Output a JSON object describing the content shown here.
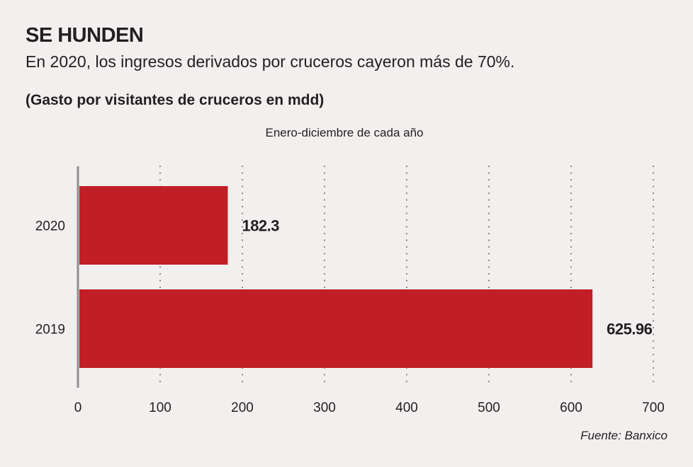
{
  "header": {
    "title": "SE HUNDEN",
    "subtitle": "En 2020, los ingresos derivados por cruceros cayeron más de 70%.",
    "unit_note": "(Gasto por visitantes de cruceros en mdd)"
  },
  "footer": {
    "source": "Fuente: Banxico"
  },
  "colors": {
    "bar": "#c11e26",
    "background": "#f2efef",
    "grid": "#8a8a8a",
    "axis": "#8f8f8f",
    "text": "#231f20"
  },
  "chart_data": {
    "type": "bar",
    "orientation": "horizontal",
    "title": "SE HUNDEN",
    "subtitle": "Enero-diciembre de cada año",
    "xlabel": "",
    "ylabel": "",
    "categories": [
      "2020",
      "2019"
    ],
    "values": [
      182.3,
      625.96
    ],
    "data_labels": [
      "182.3",
      "625.96"
    ],
    "xlim": [
      0,
      700
    ],
    "xticks": [
      0,
      100,
      200,
      300,
      400,
      500,
      600,
      700
    ],
    "xtick_labels": [
      "0",
      "100",
      "200",
      "300",
      "400",
      "500",
      "600",
      "700"
    ],
    "grid": "vertical dotted",
    "legend": "none"
  }
}
